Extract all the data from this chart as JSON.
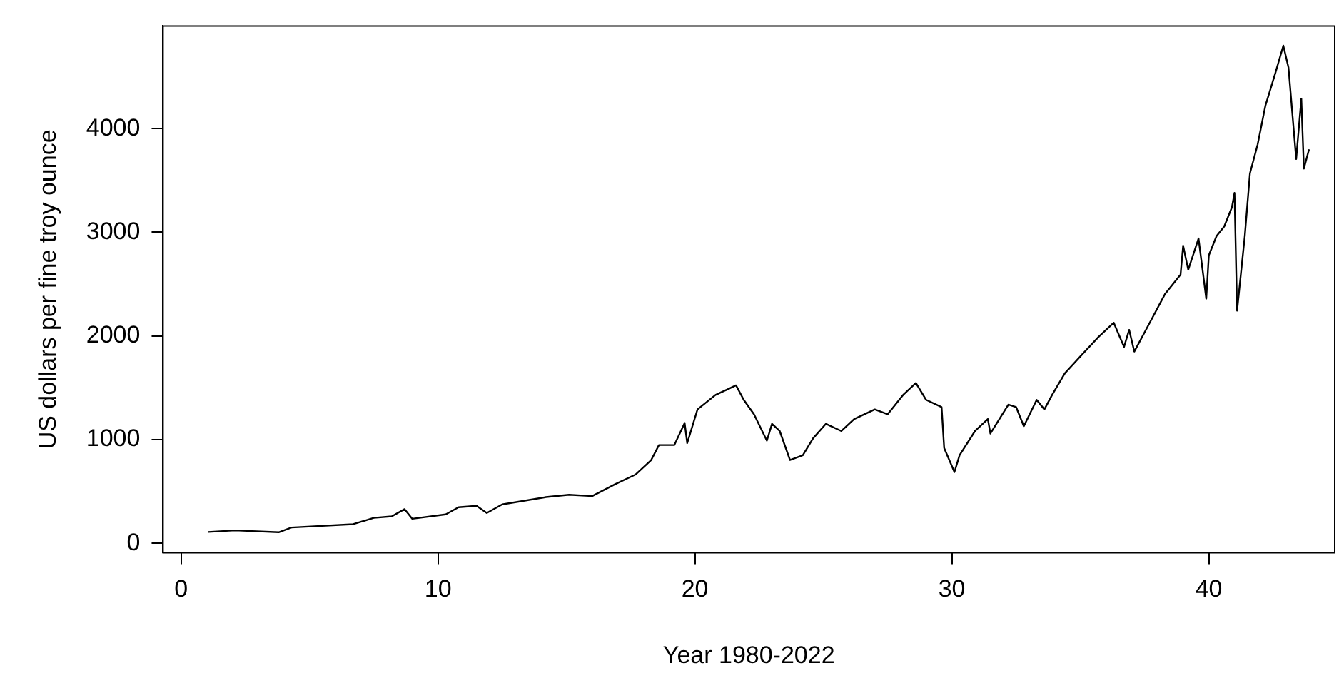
{
  "chart_data": {
    "type": "line",
    "xlabel": "Year 1980-2022",
    "ylabel": "US dollars per fine troy ounce",
    "x": [
      1.06,
      2.1,
      3.8,
      4.3,
      6.7,
      7.5,
      8.2,
      8.7,
      9.0,
      10.3,
      10.8,
      11.5,
      11.9,
      12.5,
      14.2,
      15.1,
      16.0,
      16.9,
      17.7,
      18.3,
      18.6,
      19.2,
      19.6,
      19.7,
      20.1,
      20.8,
      21.6,
      21.9,
      22.3,
      22.8,
      23.0,
      23.3,
      23.7,
      24.2,
      24.6,
      25.1,
      25.7,
      26.2,
      27.0,
      27.5,
      28.1,
      28.6,
      29.0,
      29.6,
      29.7,
      30.1,
      30.3,
      30.9,
      31.4,
      31.5,
      32.2,
      32.5,
      32.8,
      33.3,
      33.6,
      33.9,
      34.4,
      35.0,
      35.7,
      36.3,
      36.7,
      36.9,
      37.1,
      37.8,
      38.3,
      38.9,
      39.0,
      39.2,
      39.6,
      39.9,
      40.0,
      40.3,
      40.6,
      40.9,
      41.0,
      41.1,
      41.4,
      41.6,
      41.9,
      42.2,
      42.6,
      42.9,
      43.1,
      43.4,
      43.6,
      43.7,
      43.9
    ],
    "series": [
      {
        "color": "#000000",
        "values": [
          110,
          125,
          107,
          153,
          185,
          246,
          260,
          330,
          237,
          279,
          348,
          362,
          293,
          376,
          446,
          469,
          456,
          571,
          665,
          804,
          948,
          948,
          1161,
          966,
          1292,
          1431,
          1524,
          1384,
          1245,
          990,
          1153,
          1083,
          804,
          850,
          1013,
          1153,
          1083,
          1199,
          1292,
          1245,
          1431,
          1547,
          1384,
          1315,
          920,
          687,
          850,
          1083,
          1199,
          1059,
          1338,
          1315,
          1129,
          1384,
          1292,
          1431,
          1641,
          1803,
          1989,
          2128,
          1895,
          2059,
          1850,
          2174,
          2407,
          2592,
          2871,
          2639,
          2941,
          2360,
          2778,
          2964,
          3057,
          3243,
          3380,
          2244,
          2964,
          3568,
          3847,
          4219,
          4544,
          4800,
          4590,
          3707,
          4289,
          3614,
          3800
        ]
      }
    ],
    "xlim": [
      -0.7,
      44.9
    ],
    "xticks": [
      0,
      10,
      20,
      30,
      40
    ],
    "ylim": [
      -90,
      4990
    ],
    "yticks": [
      0,
      1000,
      2000,
      3000,
      4000
    ],
    "grid": false,
    "legend": false,
    "marker": "none",
    "line_style": "solid"
  }
}
